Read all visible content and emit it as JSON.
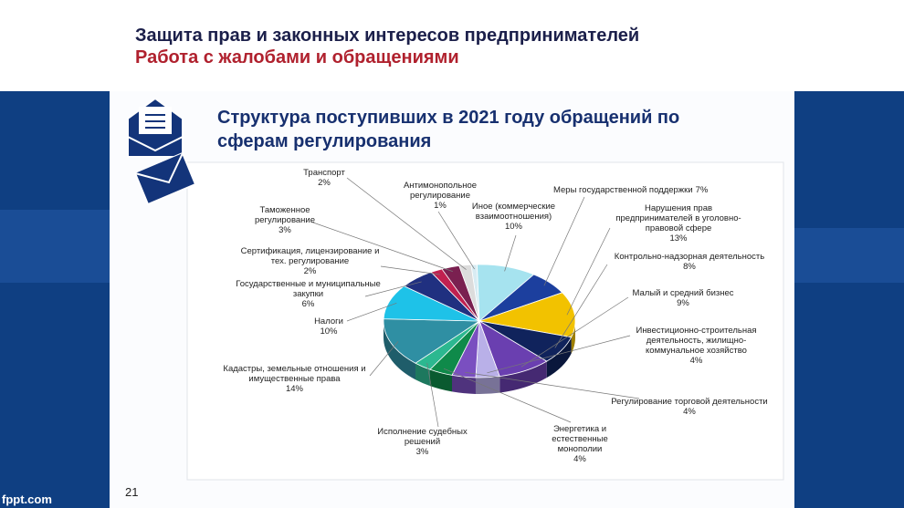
{
  "header": {
    "title": "Защита прав и законных интересов предпринимателей",
    "subtitle": "Работа с жалобами и обращениями"
  },
  "slide": {
    "title": "Структура поступивших в 2021 году обращений по сферам регулирования",
    "page_number": "21",
    "footer": "fppt.com"
  },
  "chart_data": {
    "type": "pie",
    "categories": [
      "Антимонопольное регулирование",
      "Иное (коммерческие взаимоотношения)",
      "Меры государственной поддержки",
      "Нарушения прав предпринимателей в уголовно-правовой сфере",
      "Контрольно-надзорная деятельность",
      "Малый и средний бизнес",
      "Инвестиционно-строительная деятельность, жилищно-коммунальное хозяйство",
      "Регулирование торговой деятельности",
      "Энергетика и естественные монополии",
      "Исполнение судебных решений",
      "Кадастры, земельные отношения и имущественные права",
      "Налоги",
      "Государственные и муниципальные закупки",
      "Сертификация, лицензирование и тех. регулирование",
      "Таможенное регулирование",
      "Транспорт"
    ],
    "values": [
      1,
      10,
      7,
      13,
      8,
      9,
      4,
      4,
      4,
      3,
      14,
      10,
      6,
      2,
      3,
      2
    ],
    "value_labels": [
      "1%",
      "10%",
      "7%",
      "13%",
      "8%",
      "9%",
      "4%",
      "4%",
      "4%",
      "3%",
      "14%",
      "10%",
      "6%",
      "2%",
      "3%",
      "2%"
    ],
    "colors": [
      "#d8ecf3",
      "#a6e3ef",
      "#1c3f9e",
      "#f2c200",
      "#10235c",
      "#6a3fb0",
      "#b9b0e8",
      "#7a4fc0",
      "#0f8a4a",
      "#2cb890",
      "#2f8fa3",
      "#1ec2e8",
      "#203080",
      "#c02050",
      "#7a2050",
      "#dcdcdc"
    ]
  }
}
